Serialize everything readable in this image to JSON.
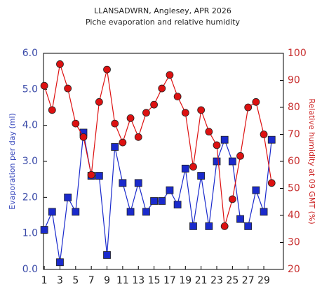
{
  "chart_data": {
    "type": "line",
    "title": "LLANSADWRN, Anglesey, APR 2026",
    "subtitle": "Piche evaporation and relative humidity",
    "ylabel": "Evaporation per day (ml)",
    "y2label": "Relative humidity at 09 GMT (%)",
    "x": [
      1,
      2,
      3,
      4,
      5,
      6,
      7,
      8,
      9,
      10,
      11,
      12,
      13,
      14,
      15,
      16,
      17,
      18,
      19,
      20,
      21,
      22,
      23,
      24,
      25,
      26,
      27,
      28,
      29,
      30
    ],
    "xlim": [
      0.9,
      31.5
    ],
    "xticks": [
      1,
      3,
      5,
      7,
      9,
      11,
      13,
      15,
      17,
      19,
      21,
      23,
      25,
      27,
      29
    ],
    "ylim": [
      0,
      6
    ],
    "yticks": [
      {
        "value": 0,
        "label": "0.0"
      },
      {
        "value": 1,
        "label": "1.0"
      },
      {
        "value": 2,
        "label": "2.0"
      },
      {
        "value": 3,
        "label": "3.0"
      },
      {
        "value": 4,
        "label": "4.0"
      },
      {
        "value": 5,
        "label": "5.0"
      },
      {
        "value": 6,
        "label": "6.0"
      }
    ],
    "y2lim": [
      20,
      100
    ],
    "y2ticks": [
      20,
      30,
      40,
      50,
      60,
      70,
      80,
      90,
      100
    ],
    "series": [
      {
        "color": "#1a2acc",
        "marker": "square",
        "axis": "y",
        "values": [
          1.1,
          1.6,
          0.2,
          2.0,
          1.6,
          3.8,
          2.6,
          2.6,
          0.4,
          3.4,
          2.4,
          1.6,
          2.4,
          1.6,
          1.9,
          1.9,
          2.2,
          1.8,
          2.8,
          1.2,
          2.6,
          1.2,
          3.0,
          3.6,
          3.0,
          1.4,
          1.2,
          2.2,
          1.6,
          3.6
        ]
      },
      {
        "color": "#dd1111",
        "marker": "circle",
        "axis": "y2",
        "values": [
          88,
          79,
          96,
          87,
          74,
          69,
          55,
          82,
          94,
          74,
          67,
          76,
          69,
          78,
          81,
          87,
          92,
          84,
          78,
          58,
          79,
          71,
          66,
          36,
          46,
          62,
          80,
          82,
          70,
          52
        ]
      }
    ]
  }
}
